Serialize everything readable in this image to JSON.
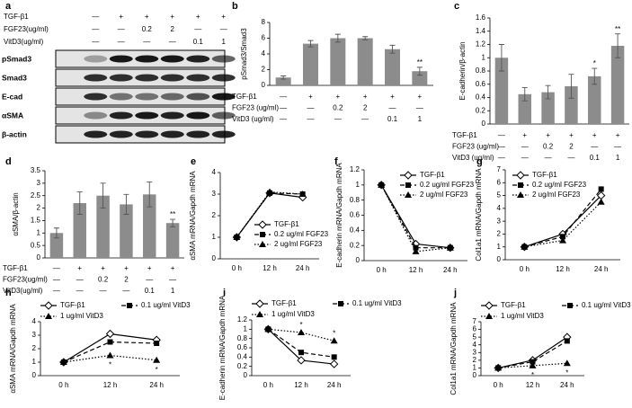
{
  "blot": {
    "panel": "a",
    "conditions": [
      {
        "label": "TGF-β1",
        "values": [
          "—",
          "+",
          "+",
          "+",
          "+",
          "+"
        ]
      },
      {
        "label": "FGF23(ug/ml)",
        "values": [
          "—",
          "—",
          "0.2",
          "2",
          "—",
          "—"
        ]
      },
      {
        "label": "VitD3(ug/ml)",
        "values": [
          "—",
          "—",
          "—",
          "—",
          "0.1",
          "1"
        ]
      }
    ],
    "bands": [
      "pSmad3",
      "Smad3",
      "E-cad",
      "αSMA",
      "β-actin"
    ]
  },
  "chart_data": [
    {
      "type": "bar",
      "panel": "b",
      "ylabel": "pSmad3/Smad3",
      "color": "#8c8c8c",
      "values": [
        1.0,
        5.3,
        6.0,
        6.0,
        4.6,
        1.8
      ],
      "errors": [
        0.2,
        0.4,
        0.5,
        0.2,
        0.5,
        0.5
      ],
      "annotations": [
        null,
        null,
        null,
        null,
        null,
        "**"
      ],
      "ylim": [
        0,
        8
      ],
      "yticks": [
        0,
        2,
        4,
        6,
        8
      ],
      "conditions": [
        {
          "label": "TGF-β1",
          "values": [
            "—",
            "+",
            "+",
            "+",
            "+",
            "+"
          ]
        },
        {
          "label": "FGF23 (ug/ml)",
          "values": [
            "—",
            "—",
            "0.2",
            "2",
            "—",
            "—"
          ]
        },
        {
          "label": "VitD3 (ug/ml)",
          "values": [
            "—",
            "—",
            "—",
            "—",
            "0.1",
            "1"
          ]
        }
      ]
    },
    {
      "type": "bar",
      "panel": "c",
      "ylabel": "E-cadherin/β-actin",
      "color": "#8c8c8c",
      "values": [
        1.0,
        0.45,
        0.48,
        0.57,
        0.72,
        1.18
      ],
      "errors": [
        0.2,
        0.1,
        0.1,
        0.18,
        0.12,
        0.18
      ],
      "annotations": [
        null,
        null,
        null,
        null,
        "*",
        "**"
      ],
      "ylim": [
        0,
        1.6
      ],
      "yticks": [
        0,
        0.2,
        0.4,
        0.6,
        0.8,
        1,
        1.2,
        1.4,
        1.6
      ],
      "conditions": [
        {
          "label": "TGF-β1",
          "values": [
            "—",
            "+",
            "+",
            "+",
            "+",
            "+"
          ]
        },
        {
          "label": "FGF23 (ug/ml)",
          "values": [
            "—",
            "—",
            "0.2",
            "2",
            "—",
            "—"
          ]
        },
        {
          "label": "VitD3 (ug/ml)",
          "values": [
            "—",
            "—",
            "—",
            "—",
            "0.1",
            "1"
          ]
        }
      ]
    },
    {
      "type": "bar",
      "panel": "d",
      "ylabel": "αSMA/β-actin",
      "color": "#8c8c8c",
      "values": [
        1.0,
        2.2,
        2.5,
        2.15,
        2.55,
        1.4
      ],
      "errors": [
        0.2,
        0.45,
        0.5,
        0.4,
        0.5,
        0.15
      ],
      "annotations": [
        null,
        null,
        null,
        null,
        null,
        "**"
      ],
      "ylim": [
        0,
        3.5
      ],
      "yticks": [
        0,
        0.5,
        1,
        1.5,
        2,
        2.5,
        3,
        3.5
      ],
      "conditions": [
        {
          "label": "TGF-β1",
          "values": [
            "—",
            "+",
            "+",
            "+",
            "+",
            "+"
          ]
        },
        {
          "label": "FGF23(ug/ml)",
          "values": [
            "—",
            "—",
            "0.2",
            "2",
            "—",
            "—"
          ]
        },
        {
          "label": "VitD3(ug/ml)",
          "values": [
            "—",
            "—",
            "—",
            "—",
            "0.1",
            "1"
          ]
        }
      ]
    },
    {
      "type": "line",
      "panel": "e",
      "ylabel": "αSMA mRNA/Gapdh mRNA",
      "categories": [
        "0 h",
        "12 h",
        "24 h"
      ],
      "ylim": [
        0,
        4
      ],
      "yticks": [
        0,
        1,
        2,
        3,
        4
      ],
      "legend": "lower right",
      "series": [
        {
          "name": "TGF-β1",
          "color": "#000000",
          "marker": "diamond",
          "dash": "solid",
          "values": [
            1,
            3.05,
            2.85
          ]
        },
        {
          "name": "0.2 ug/ml FGF23",
          "color": "#000000",
          "marker": "square",
          "dash": "dashed",
          "values": [
            1,
            3.05,
            3.0
          ]
        },
        {
          "name": "2 ug/ml FGF23",
          "color": "#000000",
          "marker": "triangle",
          "dash": "dotted",
          "values": [
            1,
            3.1,
            3.0
          ]
        }
      ]
    },
    {
      "type": "line",
      "panel": "f",
      "ylabel": "E-cadherin mRNA/Gapdh mRNA",
      "categories": [
        "0 h",
        "12 h",
        "24 h"
      ],
      "ylim": [
        0,
        1.2
      ],
      "yticks": [
        0,
        0.2,
        0.4,
        0.6,
        0.8,
        1,
        1.2
      ],
      "legend": "upper right",
      "series": [
        {
          "name": "TGF-β1",
          "color": "#000000",
          "marker": "diamond",
          "dash": "solid",
          "values": [
            1,
            0.22,
            0.17
          ]
        },
        {
          "name": "0.2 ug/ml FGF23",
          "color": "#000000",
          "marker": "square",
          "dash": "dashed",
          "values": [
            1,
            0.17,
            0.17
          ]
        },
        {
          "name": "2 ug/ml FGF23",
          "color": "#000000",
          "marker": "triangle",
          "dash": "dotted",
          "values": [
            1,
            0.12,
            0.17
          ]
        }
      ]
    },
    {
      "type": "line",
      "panel": "g",
      "ylabel": "Col1a1 mRNA/Gapdh mRNA",
      "categories": [
        "0 h",
        "12 h",
        "24 h"
      ],
      "ylim": [
        0,
        7
      ],
      "yticks": [
        0,
        1,
        2,
        3,
        4,
        5,
        6,
        7
      ],
      "legend": "upper left",
      "series": [
        {
          "name": "TGF-β1",
          "color": "#000000",
          "marker": "diamond",
          "dash": "solid",
          "values": [
            1,
            2.0,
            5.0
          ]
        },
        {
          "name": "0.2 ug/ml FGF23",
          "color": "#000000",
          "marker": "square",
          "dash": "dashed",
          "values": [
            1,
            1.8,
            5.5
          ]
        },
        {
          "name": "2 ug/ml FGF23",
          "color": "#000000",
          "marker": "triangle",
          "dash": "dotted",
          "values": [
            1,
            1.5,
            4.5
          ]
        }
      ]
    },
    {
      "type": "line",
      "panel": "h",
      "ylabel": "αSMA mRNA/Gapdh mRNA",
      "categories": [
        "0 h",
        "12 h",
        "24 h"
      ],
      "ylim": [
        0,
        4
      ],
      "yticks": [
        0,
        1,
        2,
        3,
        4
      ],
      "legend": "top",
      "series": [
        {
          "name": "TGF-β1",
          "color": "#000000",
          "marker": "diamond",
          "dash": "solid",
          "values": [
            1,
            3.1,
            2.65
          ]
        },
        {
          "name": "0.1 ug/ml VitD3",
          "color": "#000000",
          "marker": "square",
          "dash": "dashed",
          "values": [
            1,
            2.5,
            2.4
          ]
        },
        {
          "name": "1 ug/ml VitD3",
          "color": "#000000",
          "marker": "triangle",
          "dash": "dotted",
          "values": [
            1,
            1.5,
            1.15
          ],
          "annotations": [
            null,
            "*",
            "*"
          ]
        }
      ]
    },
    {
      "type": "line",
      "panel": "i",
      "ylabel": "E-cadherin mRNA/Gapdh mRNA",
      "categories": [
        "0 h",
        "12 h",
        "24 h"
      ],
      "ylim": [
        0,
        1.2
      ],
      "yticks": [
        0,
        0.2,
        0.4,
        0.6,
        0.8,
        1,
        1.2
      ],
      "legend": "top",
      "series": [
        {
          "name": "TGF-β1",
          "color": "#000000",
          "marker": "diamond",
          "dash": "solid",
          "values": [
            1,
            0.33,
            0.25
          ]
        },
        {
          "name": "0.1 ug/ml VitD3",
          "color": "#000000",
          "marker": "square",
          "dash": "dashed",
          "values": [
            1,
            0.5,
            0.4
          ]
        },
        {
          "name": "1 ug/ml VitD3",
          "color": "#000000",
          "marker": "triangle",
          "dash": "dotted",
          "values": [
            1,
            0.93,
            0.75
          ],
          "annotations": [
            null,
            "*",
            "*"
          ]
        }
      ]
    },
    {
      "type": "line",
      "panel": "j",
      "ylabel": "Col1a1 mRNA/Gapdh mRNA",
      "categories": [
        "0 h",
        "12 h",
        "24 h"
      ],
      "ylim": [
        0,
        7
      ],
      "yticks": [
        0,
        1,
        2,
        3,
        4,
        5,
        6,
        7
      ],
      "legend": "top",
      "series": [
        {
          "name": "TGF-β1",
          "color": "#000000",
          "marker": "diamond",
          "dash": "solid",
          "values": [
            1,
            2.0,
            5.0
          ]
        },
        {
          "name": "0.1 ug/ml VitD3",
          "color": "#000000",
          "marker": "square",
          "dash": "dashed",
          "values": [
            1,
            1.8,
            4.5
          ]
        },
        {
          "name": "1 ug/ml VitD3",
          "color": "#000000",
          "marker": "triangle",
          "dash": "dotted",
          "values": [
            1,
            1.3,
            1.6
          ],
          "annotations": [
            null,
            "*",
            "*"
          ]
        }
      ]
    }
  ]
}
